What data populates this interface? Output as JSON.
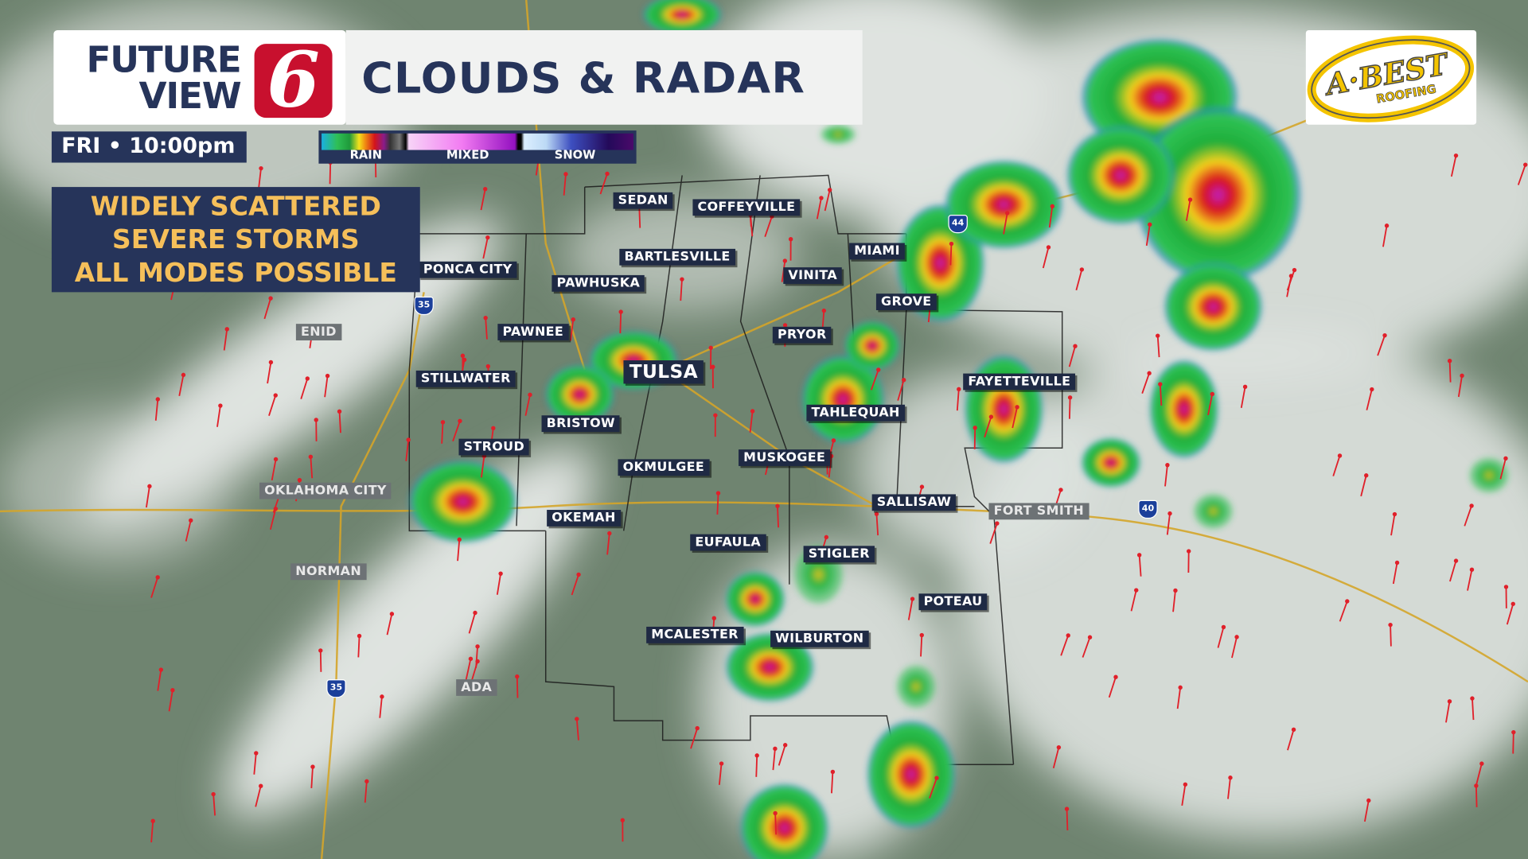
{
  "brand": {
    "line1": "FUTURE",
    "line2": "VIEW",
    "channel": "6",
    "brand_color": "#c8102e"
  },
  "title": "CLOUDS & RADAR",
  "time": "FRI • 10:00pm",
  "legend": {
    "rain": "RAIN",
    "mixed": "MIXED",
    "snow": "SNOW"
  },
  "headline": [
    "WIDELY SCATTERED",
    "SEVERE STORMS",
    "ALL MODES POSSIBLE"
  ],
  "sponsor": {
    "logo_text": "A-BEST",
    "logo_subtext": "ROOFING"
  },
  "cities": [
    {
      "name": "SEDAN",
      "style": "dark"
    },
    {
      "name": "COFFEYVILLE",
      "style": "dark"
    },
    {
      "name": "BARTLESVILLE",
      "style": "dark"
    },
    {
      "name": "MIAMI",
      "style": "dark"
    },
    {
      "name": "VINITA",
      "style": "dark"
    },
    {
      "name": "PONCA CITY",
      "style": "dark"
    },
    {
      "name": "PAWHUSKA",
      "style": "dark"
    },
    {
      "name": "GROVE",
      "style": "dark"
    },
    {
      "name": "PAWNEE",
      "style": "dark"
    },
    {
      "name": "PRYOR",
      "style": "dark"
    },
    {
      "name": "ENID",
      "style": "grey"
    },
    {
      "name": "STILLWATER",
      "style": "dark"
    },
    {
      "name": "TULSA",
      "style": "big"
    },
    {
      "name": "FAYETTEVILLE",
      "style": "dark"
    },
    {
      "name": "TAHLEQUAH",
      "style": "dark"
    },
    {
      "name": "BRISTOW",
      "style": "dark"
    },
    {
      "name": "STROUD",
      "style": "dark"
    },
    {
      "name": "MUSKOGEE",
      "style": "dark"
    },
    {
      "name": "OKMULGEE",
      "style": "dark"
    },
    {
      "name": "OKLAHOMA CITY",
      "style": "grey"
    },
    {
      "name": "SALLISAW",
      "style": "dark"
    },
    {
      "name": "FORT SMITH",
      "style": "grey"
    },
    {
      "name": "OKEMAH",
      "style": "dark"
    },
    {
      "name": "EUFAULA",
      "style": "dark"
    },
    {
      "name": "STIGLER",
      "style": "dark"
    },
    {
      "name": "NORMAN",
      "style": "grey"
    },
    {
      "name": "POTEAU",
      "style": "dark"
    },
    {
      "name": "MCALESTER",
      "style": "dark"
    },
    {
      "name": "WILBURTON",
      "style": "dark"
    },
    {
      "name": "ADA",
      "style": "grey"
    }
  ],
  "interstates": [
    "35",
    "44",
    "40",
    "35"
  ]
}
